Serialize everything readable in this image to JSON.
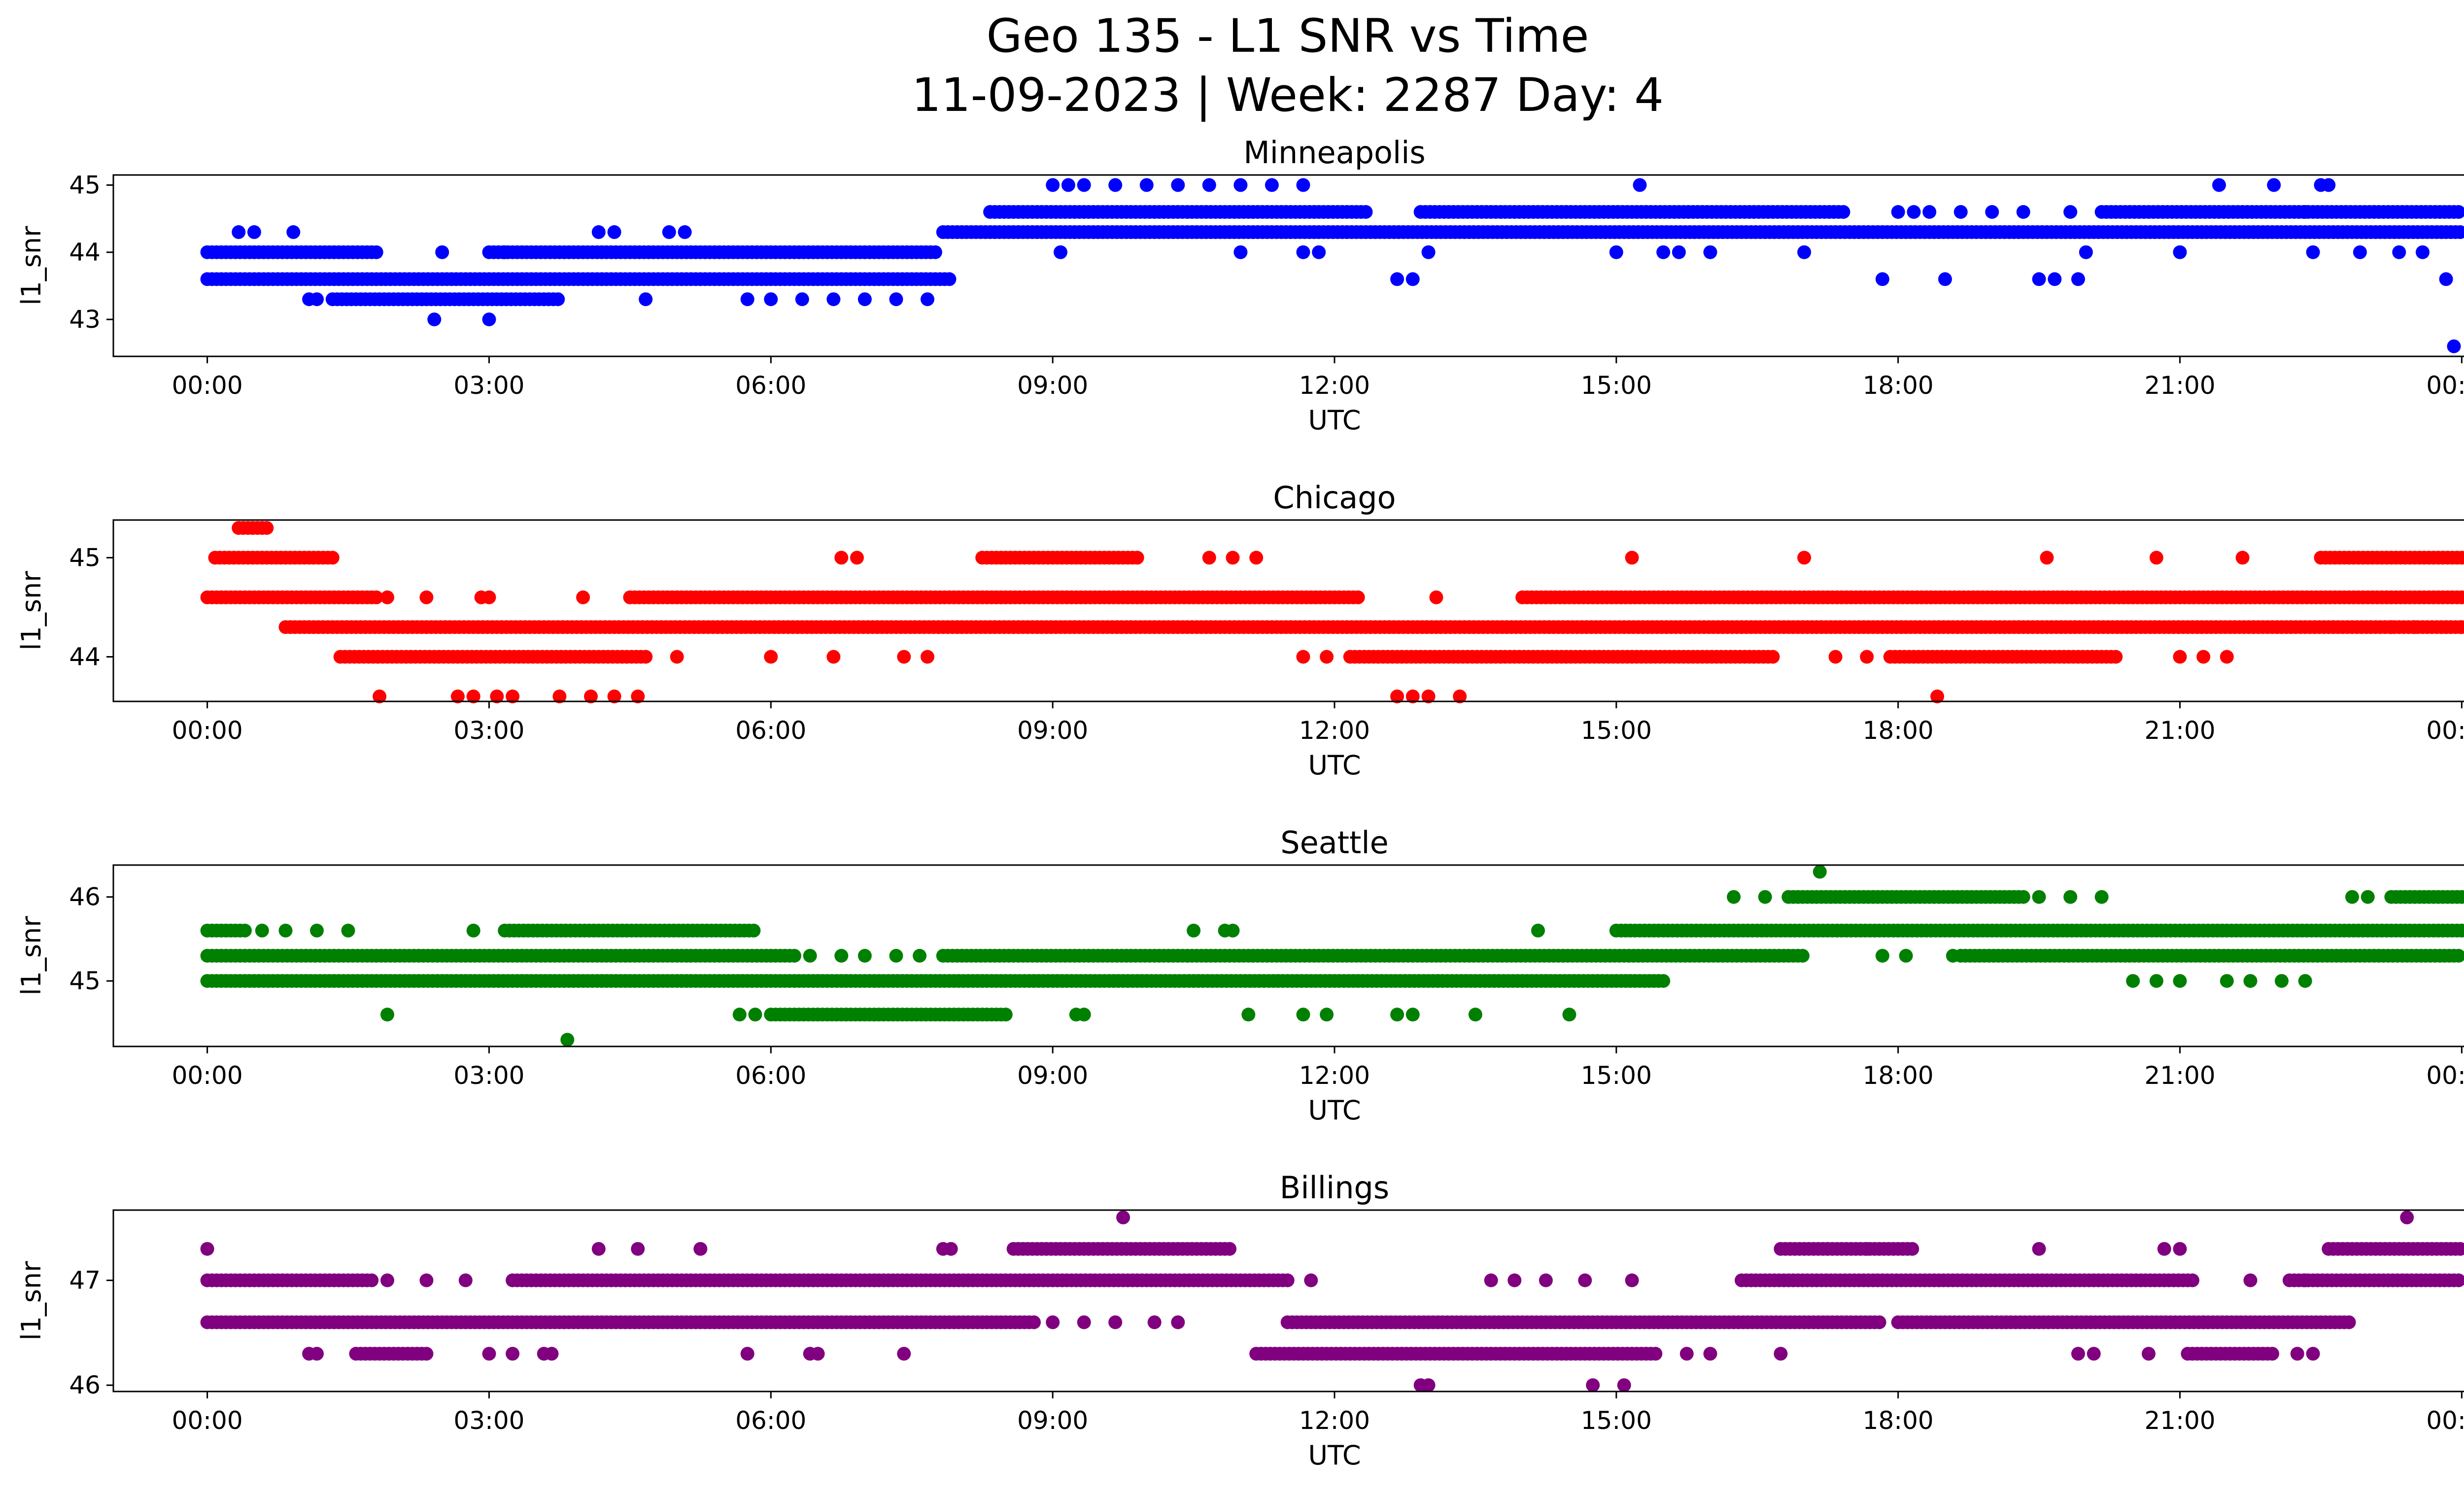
{
  "figure": {
    "title_line1": "Geo 135 - L1 SNR vs Time",
    "title_line2": "11-09-2023 | Week: 2287 Day: 4"
  },
  "chart_data": [
    {
      "type": "scatter",
      "title": "Minneapolis",
      "xlabel": "UTC",
      "ylabel": "l1_snr",
      "color": "#0000ff",
      "xlim": [
        "-01:00",
        "25:00"
      ],
      "ylim": [
        42.45,
        45.15
      ],
      "x_ticks": [
        "00:00",
        "03:00",
        "06:00",
        "09:00",
        "12:00",
        "15:00",
        "18:00",
        "21:00",
        "00:00"
      ],
      "y_ticks": [
        43,
        44,
        45
      ],
      "grid": false,
      "bands": [
        {
          "y": 43.6,
          "segments": [
            [
              "00:00",
              "07:55"
            ]
          ]
        },
        {
          "y": 44.0,
          "segments": [
            [
              "00:00",
              "01:50"
            ],
            [
              "03:00",
              "07:45"
            ]
          ]
        },
        {
          "y": 44.3,
          "segments": [
            [
              "07:50",
              "24:00"
            ]
          ]
        },
        {
          "y": 44.6,
          "segments": [
            [
              "08:20",
              "12:20"
            ],
            [
              "12:55",
              "17:25"
            ],
            [
              "20:10",
              "24:00"
            ]
          ]
        },
        {
          "y": 43.3,
          "segments": [
            [
              "01:20",
              "03:45"
            ]
          ]
        }
      ],
      "points": [
        [
          "00:20",
          44.3
        ],
        [
          "00:30",
          44.3
        ],
        [
          "00:55",
          44.3
        ],
        [
          "01:05",
          43.3
        ],
        [
          "01:10",
          43.3
        ],
        [
          "02:25",
          43.0
        ],
        [
          "02:30",
          44.0
        ],
        [
          "03:00",
          43.0
        ],
        [
          "03:10",
          44.0
        ],
        [
          "04:10",
          44.3
        ],
        [
          "04:20",
          44.3
        ],
        [
          "04:40",
          43.3
        ],
        [
          "04:55",
          44.3
        ],
        [
          "05:05",
          44.3
        ],
        [
          "05:45",
          43.3
        ],
        [
          "06:00",
          43.3
        ],
        [
          "06:20",
          43.3
        ],
        [
          "06:40",
          43.3
        ],
        [
          "07:00",
          43.3
        ],
        [
          "07:20",
          43.3
        ],
        [
          "07:40",
          43.3
        ],
        [
          "09:00",
          45.0
        ],
        [
          "09:10",
          45.0
        ],
        [
          "09:20",
          45.0
        ],
        [
          "09:40",
          45.0
        ],
        [
          "10:00",
          45.0
        ],
        [
          "10:20",
          45.0
        ],
        [
          "10:40",
          45.0
        ],
        [
          "11:00",
          45.0
        ],
        [
          "11:20",
          45.0
        ],
        [
          "11:40",
          45.0
        ],
        [
          "09:05",
          44.0
        ],
        [
          "11:00",
          44.0
        ],
        [
          "11:40",
          44.0
        ],
        [
          "11:50",
          44.0
        ],
        [
          "12:40",
          43.6
        ],
        [
          "12:50",
          43.6
        ],
        [
          "13:00",
          44.0
        ],
        [
          "15:00",
          44.0
        ],
        [
          "15:15",
          45.0
        ],
        [
          "15:30",
          44.0
        ],
        [
          "15:40",
          44.0
        ],
        [
          "16:00",
          44.0
        ],
        [
          "17:00",
          44.0
        ],
        [
          "17:50",
          43.6
        ],
        [
          "18:00",
          44.6
        ],
        [
          "18:10",
          44.6
        ],
        [
          "18:20",
          44.6
        ],
        [
          "18:30",
          43.6
        ],
        [
          "18:40",
          44.6
        ],
        [
          "19:00",
          44.6
        ],
        [
          "19:20",
          44.6
        ],
        [
          "19:30",
          43.6
        ],
        [
          "19:40",
          43.6
        ],
        [
          "19:55",
          43.6
        ],
        [
          "19:50",
          44.6
        ],
        [
          "20:00",
          44.0
        ],
        [
          "21:00",
          44.0
        ],
        [
          "21:25",
          45.0
        ],
        [
          "22:00",
          45.0
        ],
        [
          "22:20",
          44.6
        ],
        [
          "22:30",
          45.0
        ],
        [
          "22:35",
          45.0
        ],
        [
          "22:25",
          44.0
        ],
        [
          "22:55",
          44.0
        ],
        [
          "23:20",
          44.0
        ],
        [
          "23:35",
          44.0
        ],
        [
          "23:50",
          43.6
        ],
        [
          "23:55",
          42.6
        ]
      ]
    },
    {
      "type": "scatter",
      "title": "Chicago",
      "xlabel": "UTC",
      "ylabel": "l1_snr",
      "color": "#ff0000",
      "xlim": [
        "-01:00",
        "25:00"
      ],
      "ylim": [
        43.55,
        45.38
      ],
      "x_ticks": [
        "00:00",
        "03:00",
        "06:00",
        "09:00",
        "12:00",
        "15:00",
        "18:00",
        "21:00",
        "00:00"
      ],
      "y_ticks": [
        44,
        45
      ],
      "grid": false,
      "bands": [
        {
          "y": 44.6,
          "segments": [
            [
              "00:00",
              "01:50"
            ],
            [
              "04:30",
              "12:15"
            ],
            [
              "14:00",
              "24:00"
            ]
          ]
        },
        {
          "y": 44.3,
          "segments": [
            [
              "00:50",
              "24:00"
            ]
          ]
        },
        {
          "y": 44.0,
          "segments": [
            [
              "01:25",
              "04:40"
            ],
            [
              "12:10",
              "16:40"
            ],
            [
              "17:55",
              "20:20"
            ]
          ]
        },
        {
          "y": 45.0,
          "segments": [
            [
              "00:05",
              "01:20"
            ],
            [
              "08:15",
              "09:55"
            ],
            [
              "22:30",
              "24:00"
            ]
          ]
        },
        {
          "y": 45.3,
          "segments": [
            [
              "00:20",
              "00:40"
            ]
          ]
        }
      ],
      "points": [
        [
          "01:50",
          43.6
        ],
        [
          "02:40",
          43.6
        ],
        [
          "02:50",
          43.6
        ],
        [
          "03:05",
          43.6
        ],
        [
          "03:15",
          43.6
        ],
        [
          "03:45",
          43.6
        ],
        [
          "04:05",
          43.6
        ],
        [
          "04:20",
          43.6
        ],
        [
          "04:35",
          43.6
        ],
        [
          "01:55",
          44.6
        ],
        [
          "02:20",
          44.6
        ],
        [
          "02:55",
          44.6
        ],
        [
          "03:00",
          44.6
        ],
        [
          "04:00",
          44.6
        ],
        [
          "06:45",
          45.0
        ],
        [
          "06:55",
          45.0
        ],
        [
          "10:40",
          45.0
        ],
        [
          "10:55",
          45.0
        ],
        [
          "11:10",
          45.0
        ],
        [
          "11:40",
          44.0
        ],
        [
          "11:55",
          44.0
        ],
        [
          "05:00",
          44.0
        ],
        [
          "06:00",
          44.0
        ],
        [
          "06:40",
          44.0
        ],
        [
          "07:25",
          44.0
        ],
        [
          "07:40",
          44.0
        ],
        [
          "12:40",
          43.6
        ],
        [
          "12:50",
          43.6
        ],
        [
          "13:00",
          43.6
        ],
        [
          "13:20",
          43.6
        ],
        [
          "13:05",
          44.6
        ],
        [
          "15:10",
          45.0
        ],
        [
          "17:00",
          45.0
        ],
        [
          "18:25",
          43.6
        ],
        [
          "19:35",
          45.0
        ],
        [
          "20:45",
          45.0
        ],
        [
          "21:40",
          45.0
        ],
        [
          "21:00",
          44.0
        ],
        [
          "21:15",
          44.0
        ],
        [
          "21:30",
          44.0
        ],
        [
          "17:20",
          44.0
        ],
        [
          "17:40",
          44.0
        ],
        [
          "23:50",
          44.3
        ],
        [
          "23:30",
          44.3
        ],
        [
          "23:15",
          44.3
        ],
        [
          "24:00",
          44.3
        ]
      ]
    },
    {
      "type": "scatter",
      "title": "Seattle",
      "xlabel": "UTC",
      "ylabel": "l1_snr",
      "color": "#008000",
      "xlim": [
        "-01:00",
        "25:00"
      ],
      "ylim": [
        44.22,
        46.38
      ],
      "x_ticks": [
        "00:00",
        "03:00",
        "06:00",
        "09:00",
        "12:00",
        "15:00",
        "18:00",
        "21:00",
        "00:00"
      ],
      "y_ticks": [
        45,
        46
      ],
      "grid": false,
      "bands": [
        {
          "y": 45.3,
          "segments": [
            [
              "00:00",
              "06:15"
            ],
            [
              "07:50",
              "17:00"
            ],
            [
              "18:40",
              "24:00"
            ]
          ]
        },
        {
          "y": 45.0,
          "segments": [
            [
              "00:00",
              "15:30"
            ]
          ]
        },
        {
          "y": 45.6,
          "segments": [
            [
              "00:00",
              "00:25"
            ],
            [
              "03:10",
              "05:50"
            ],
            [
              "15:00",
              "24:00"
            ]
          ]
        },
        {
          "y": 44.6,
          "segments": [
            [
              "06:00",
              "08:30"
            ]
          ]
        },
        {
          "y": 46.0,
          "segments": [
            [
              "16:50",
              "19:20"
            ],
            [
              "23:15",
              "24:00"
            ]
          ]
        }
      ],
      "points": [
        [
          "00:35",
          45.6
        ],
        [
          "00:50",
          45.6
        ],
        [
          "01:10",
          45.6
        ],
        [
          "01:30",
          45.6
        ],
        [
          "01:55",
          44.6
        ],
        [
          "02:50",
          45.6
        ],
        [
          "03:50",
          44.3
        ],
        [
          "06:25",
          45.3
        ],
        [
          "06:45",
          45.3
        ],
        [
          "07:00",
          45.3
        ],
        [
          "07:20",
          45.3
        ],
        [
          "07:35",
          45.3
        ],
        [
          "05:40",
          44.6
        ],
        [
          "05:50",
          44.6
        ],
        [
          "09:15",
          44.6
        ],
        [
          "09:20",
          44.6
        ],
        [
          "10:30",
          45.6
        ],
        [
          "10:50",
          45.6
        ],
        [
          "10:55",
          45.6
        ],
        [
          "11:05",
          44.6
        ],
        [
          "11:40",
          44.6
        ],
        [
          "11:55",
          44.6
        ],
        [
          "12:40",
          44.6
        ],
        [
          "12:50",
          44.6
        ],
        [
          "13:30",
          44.6
        ],
        [
          "14:10",
          45.6
        ],
        [
          "14:30",
          44.6
        ],
        [
          "16:15",
          46.0
        ],
        [
          "16:35",
          46.0
        ],
        [
          "17:10",
          46.3
        ],
        [
          "17:50",
          45.3
        ],
        [
          "18:05",
          45.3
        ],
        [
          "18:35",
          45.3
        ],
        [
          "19:30",
          46.0
        ],
        [
          "19:50",
          46.0
        ],
        [
          "20:10",
          46.0
        ],
        [
          "20:30",
          45.0
        ],
        [
          "20:45",
          45.0
        ],
        [
          "21:00",
          45.0
        ],
        [
          "21:30",
          45.0
        ],
        [
          "21:45",
          45.0
        ],
        [
          "22:05",
          45.0
        ],
        [
          "22:20",
          45.0
        ],
        [
          "22:50",
          46.0
        ],
        [
          "23:00",
          46.0
        ]
      ]
    },
    {
      "type": "scatter",
      "title": "Billings",
      "xlabel": "UTC",
      "ylabel": "l1_snr",
      "color": "#800080",
      "xlim": [
        "-01:00",
        "25:00"
      ],
      "ylim": [
        45.94,
        47.67
      ],
      "x_ticks": [
        "00:00",
        "03:00",
        "06:00",
        "09:00",
        "12:00",
        "15:00",
        "18:00",
        "21:00",
        "00:00"
      ],
      "y_ticks": [
        46,
        47
      ],
      "grid": false,
      "bands": [
        {
          "y": 47.0,
          "segments": [
            [
              "00:00",
              "01:45"
            ],
            [
              "03:15",
              "11:30"
            ],
            [
              "16:20",
              "21:10"
            ],
            [
              "22:10",
              "24:00"
            ]
          ]
        },
        {
          "y": 46.6,
          "segments": [
            [
              "00:00",
              "08:50"
            ],
            [
              "11:30",
              "17:50"
            ],
            [
              "18:00",
              "22:50"
            ]
          ]
        },
        {
          "y": 46.3,
          "segments": [
            [
              "01:35",
              "02:20"
            ],
            [
              "11:10",
              "15:25"
            ],
            [
              "21:05",
              "22:00"
            ]
          ]
        },
        {
          "y": 47.3,
          "segments": [
            [
              "08:35",
              "10:55"
            ],
            [
              "16:45",
              "18:10"
            ],
            [
              "22:35",
              "24:00"
            ]
          ]
        }
      ],
      "points": [
        [
          "00:00",
          47.3
        ],
        [
          "01:05",
          46.3
        ],
        [
          "01:10",
          46.3
        ],
        [
          "01:55",
          47.0
        ],
        [
          "02:20",
          47.0
        ],
        [
          "02:45",
          47.0
        ],
        [
          "03:00",
          46.3
        ],
        [
          "03:15",
          46.3
        ],
        [
          "03:35",
          46.3
        ],
        [
          "03:40",
          46.3
        ],
        [
          "04:10",
          47.3
        ],
        [
          "04:35",
          47.3
        ],
        [
          "05:15",
          47.3
        ],
        [
          "05:45",
          46.3
        ],
        [
          "06:25",
          46.3
        ],
        [
          "06:30",
          46.3
        ],
        [
          "07:25",
          46.3
        ],
        [
          "07:50",
          47.3
        ],
        [
          "07:55",
          47.3
        ],
        [
          "09:00",
          46.6
        ],
        [
          "09:20",
          46.6
        ],
        [
          "09:40",
          46.6
        ],
        [
          "10:05",
          46.6
        ],
        [
          "10:20",
          46.6
        ],
        [
          "09:45",
          47.6
        ],
        [
          "11:45",
          47.0
        ],
        [
          "12:55",
          46.0
        ],
        [
          "13:00",
          46.0
        ],
        [
          "13:40",
          47.0
        ],
        [
          "13:55",
          47.0
        ],
        [
          "14:15",
          47.0
        ],
        [
          "14:40",
          47.0
        ],
        [
          "14:45",
          46.0
        ],
        [
          "15:05",
          46.0
        ],
        [
          "15:10",
          47.0
        ],
        [
          "15:45",
          46.3
        ],
        [
          "16:00",
          46.3
        ],
        [
          "16:45",
          46.3
        ],
        [
          "17:15",
          47.3
        ],
        [
          "17:40",
          47.3
        ],
        [
          "19:30",
          47.3
        ],
        [
          "19:55",
          46.3
        ],
        [
          "20:05",
          46.3
        ],
        [
          "20:40",
          46.3
        ],
        [
          "20:50",
          47.3
        ],
        [
          "21:00",
          47.3
        ],
        [
          "21:15",
          46.6
        ],
        [
          "21:45",
          47.0
        ],
        [
          "22:15",
          46.3
        ],
        [
          "22:25",
          46.3
        ],
        [
          "23:25",
          47.6
        ],
        [
          "22:20",
          47.0
        ]
      ]
    }
  ]
}
